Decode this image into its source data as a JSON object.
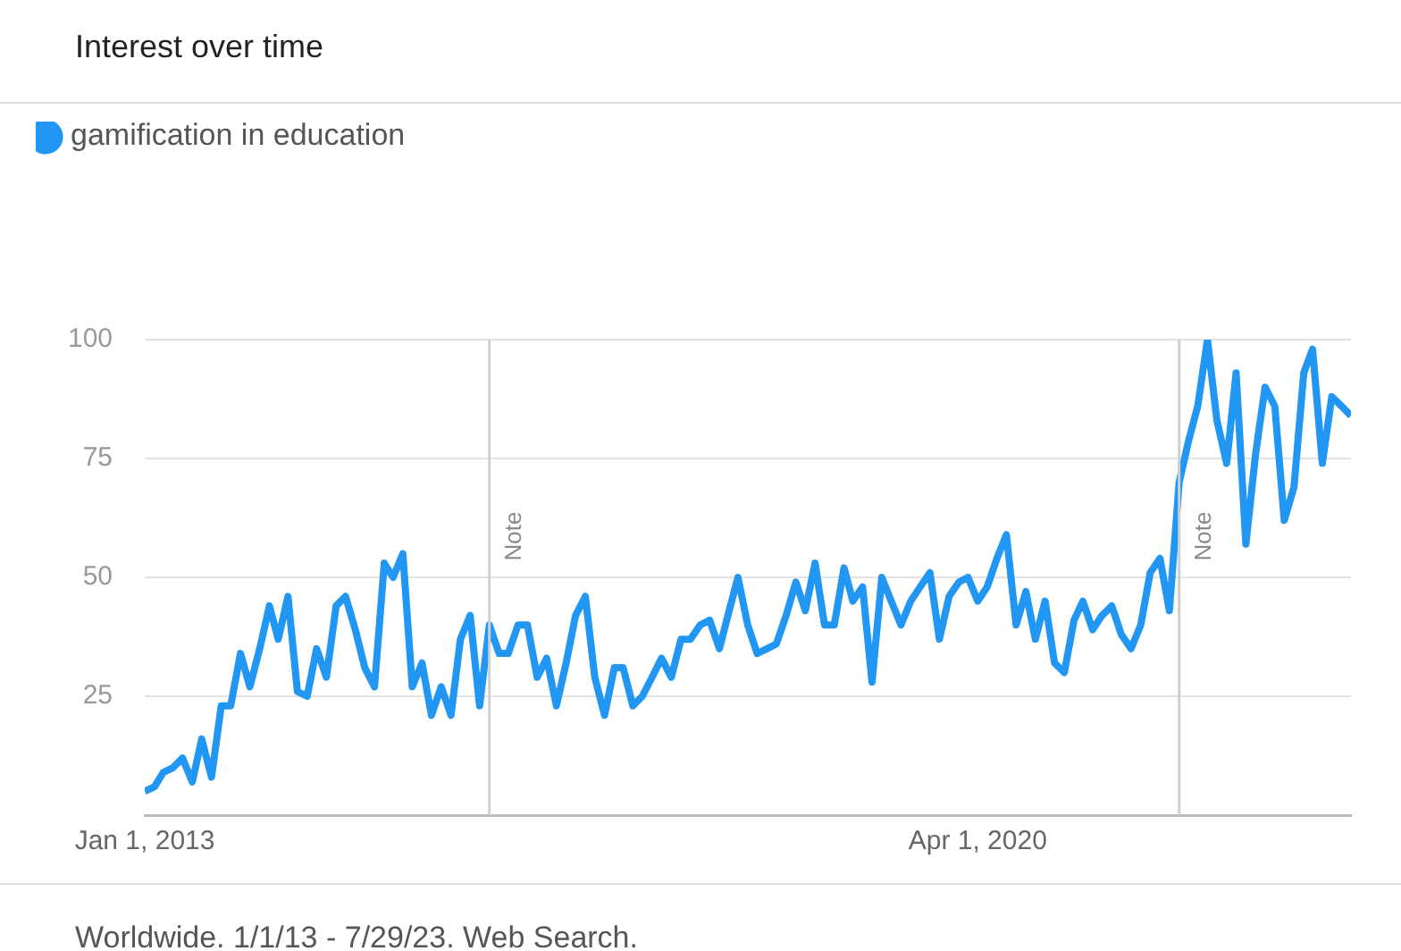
{
  "chart_data": {
    "type": "line",
    "title": "Interest over time",
    "annotations": [
      "Worldwide. 1/1/13 - 7/29/23. Web Search."
    ],
    "x": [
      "2013-01",
      "2013-02",
      "2013-03",
      "2013-04",
      "2013-05",
      "2013-06",
      "2013-07",
      "2013-08",
      "2013-09",
      "2013-10",
      "2013-11",
      "2013-12",
      "2014-01",
      "2014-02",
      "2014-03",
      "2014-04",
      "2014-05",
      "2014-06",
      "2014-07",
      "2014-08",
      "2014-09",
      "2014-10",
      "2014-11",
      "2014-12",
      "2015-01",
      "2015-02",
      "2015-03",
      "2015-04",
      "2015-05",
      "2015-06",
      "2015-07",
      "2015-08",
      "2015-09",
      "2015-10",
      "2015-11",
      "2015-12",
      "2016-01",
      "2016-02",
      "2016-03",
      "2016-04",
      "2016-05",
      "2016-06",
      "2016-07",
      "2016-08",
      "2016-09",
      "2016-10",
      "2016-11",
      "2016-12",
      "2017-01",
      "2017-02",
      "2017-03",
      "2017-04",
      "2017-05",
      "2017-06",
      "2017-07",
      "2017-08",
      "2017-09",
      "2017-10",
      "2017-11",
      "2017-12",
      "2018-01",
      "2018-02",
      "2018-03",
      "2018-04",
      "2018-05",
      "2018-06",
      "2018-07",
      "2018-08",
      "2018-09",
      "2018-10",
      "2018-11",
      "2018-12",
      "2019-01",
      "2019-02",
      "2019-03",
      "2019-04",
      "2019-05",
      "2019-06",
      "2019-07",
      "2019-08",
      "2019-09",
      "2019-10",
      "2019-11",
      "2019-12",
      "2020-01",
      "2020-02",
      "2020-03",
      "2020-04",
      "2020-05",
      "2020-06",
      "2020-07",
      "2020-08",
      "2020-09",
      "2020-10",
      "2020-11",
      "2020-12",
      "2021-01",
      "2021-02",
      "2021-03",
      "2021-04",
      "2021-05",
      "2021-06",
      "2021-07",
      "2021-08",
      "2021-09",
      "2021-10",
      "2021-11",
      "2021-12",
      "2022-01",
      "2022-02",
      "2022-03",
      "2022-04",
      "2022-05",
      "2022-06",
      "2022-07",
      "2022-08",
      "2022-09",
      "2022-10",
      "2022-11",
      "2022-12",
      "2023-01",
      "2023-02",
      "2023-03",
      "2023-04",
      "2023-05",
      "2023-06",
      "2023-07"
    ],
    "series": [
      {
        "name": "gamification in education",
        "color": "#2196f3",
        "values": [
          5,
          6,
          9,
          10,
          12,
          7,
          16,
          8,
          23,
          23,
          34,
          27,
          35,
          44,
          37,
          46,
          26,
          25,
          35,
          29,
          44,
          46,
          39,
          31,
          27,
          53,
          50,
          55,
          27,
          32,
          21,
          27,
          21,
          37,
          42,
          23,
          40,
          34,
          34,
          40,
          40,
          29,
          33,
          23,
          32,
          42,
          46,
          29,
          21,
          31,
          31,
          23,
          25,
          29,
          33,
          29,
          37,
          37,
          40,
          41,
          35,
          43,
          50,
          40,
          34,
          35,
          36,
          42,
          49,
          43,
          53,
          40,
          40,
          52,
          45,
          48,
          28,
          50,
          45,
          40,
          45,
          48,
          51,
          37,
          46,
          49,
          50,
          45,
          48,
          54,
          59,
          40,
          47,
          37,
          45,
          32,
          30,
          41,
          45,
          39,
          42,
          44,
          38,
          35,
          40,
          51,
          54,
          43,
          70,
          79,
          86,
          100,
          83,
          74,
          93,
          57,
          76,
          90,
          86,
          62,
          69,
          93,
          98,
          74,
          88,
          86,
          84
        ]
      }
    ],
    "xlim": [
      "2013-01",
      "2023-07"
    ],
    "xticks": [
      {
        "value": "2013-01-01",
        "label": "Jan 1, 2013"
      },
      {
        "value": "2020-04-01",
        "label": "Apr 1, 2020"
      }
    ],
    "ylim": [
      0,
      100
    ],
    "yticks": [
      25,
      50,
      75,
      100
    ],
    "ref_lines": [
      {
        "axis": "x",
        "value": "2016-01",
        "label": "Note"
      },
      {
        "axis": "x",
        "value": "2022-01",
        "label": "Note"
      }
    ],
    "grid": "y",
    "legend": "top left",
    "marker": "none",
    "line_style": "solid"
  }
}
